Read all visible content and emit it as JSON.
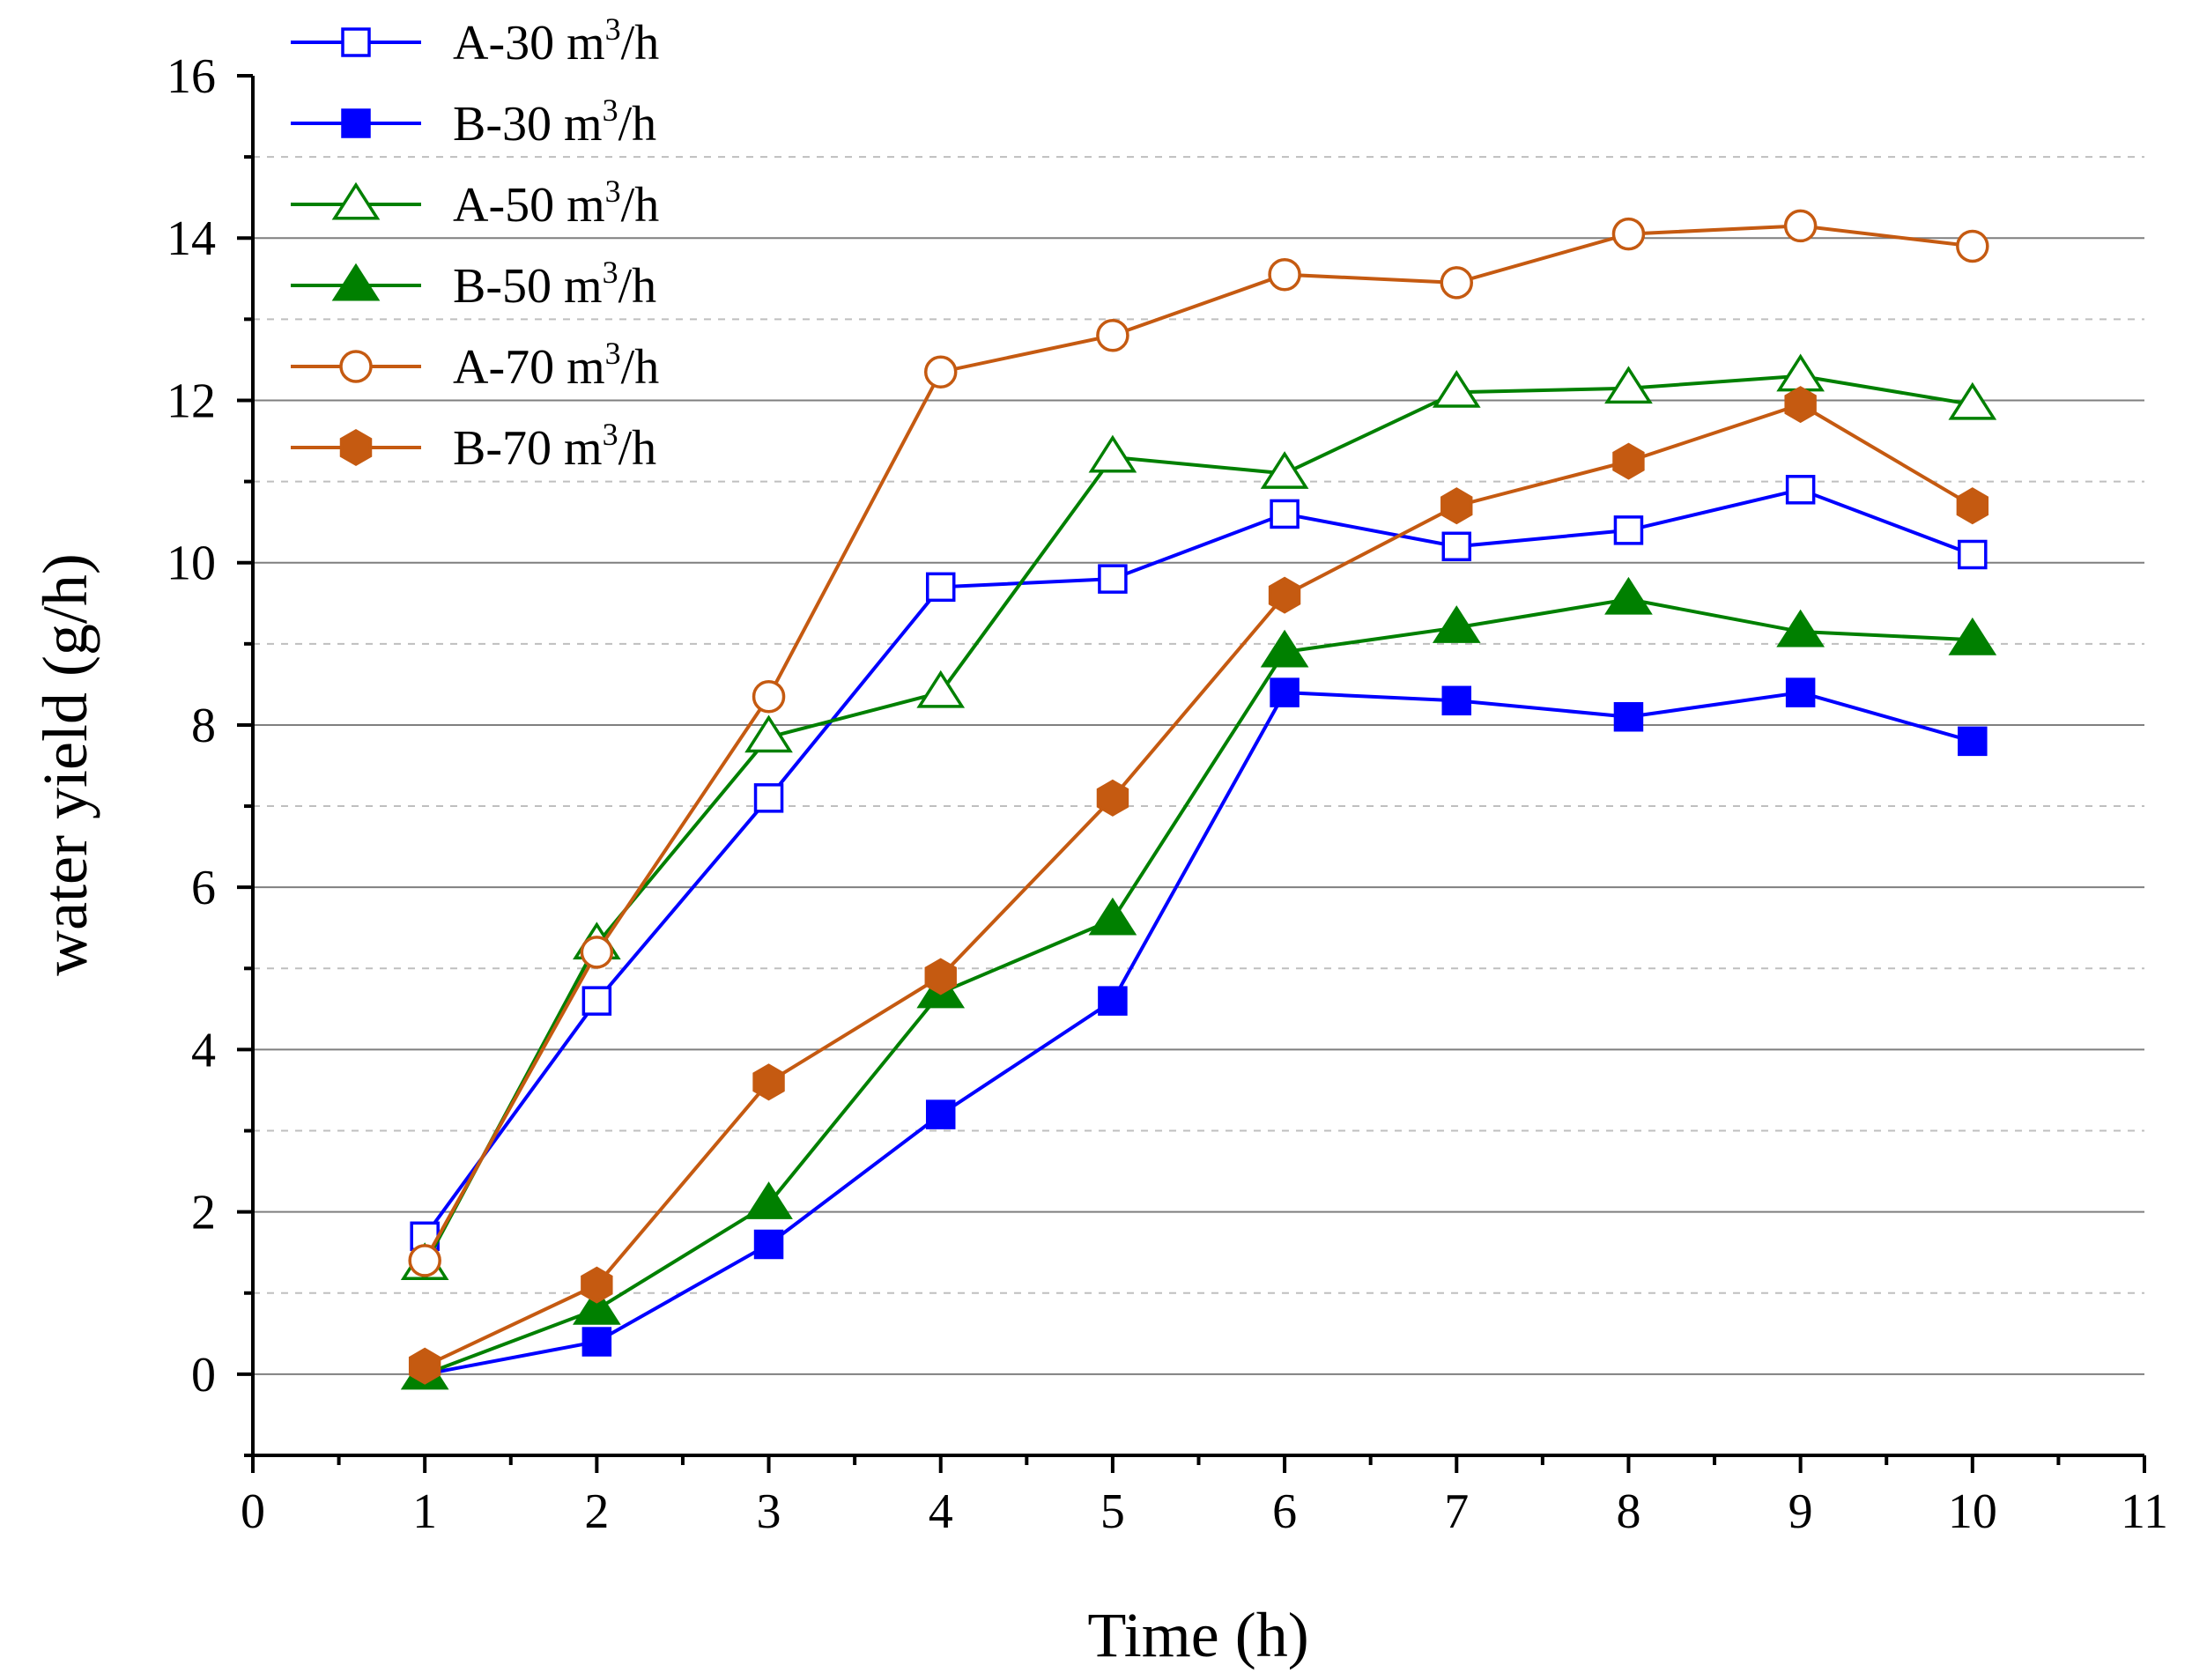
{
  "chart_data": {
    "type": "line",
    "title": "",
    "xlabel": "Time (h)",
    "ylabel": "water yield (g/h)",
    "xlim": [
      0,
      11
    ],
    "ylim": [
      -1,
      16
    ],
    "xticks": [
      0,
      1,
      2,
      3,
      4,
      5,
      6,
      7,
      8,
      9,
      10,
      11
    ],
    "yticks": [
      0,
      2,
      4,
      6,
      8,
      10,
      12,
      14,
      16
    ],
    "grid": true,
    "legend_position": "top-left",
    "x": [
      1,
      2,
      3,
      4,
      5,
      6,
      7,
      8,
      9,
      10
    ],
    "series": [
      {
        "name": "A-30 m³/h",
        "label_main": "A-30 m",
        "label_sup": "3",
        "label_tail": "/h",
        "color": "#0000ff",
        "marker": "square",
        "filled": false,
        "values": [
          1.7,
          4.6,
          7.1,
          9.7,
          9.8,
          10.6,
          10.2,
          10.4,
          10.9,
          10.1
        ]
      },
      {
        "name": "B-30 m³/h",
        "label_main": "B-30 m",
        "label_sup": "3",
        "label_tail": "/h",
        "color": "#0000ff",
        "marker": "square",
        "filled": true,
        "values": [
          0.0,
          0.4,
          1.6,
          3.2,
          4.6,
          8.4,
          8.3,
          8.1,
          8.4,
          7.8
        ]
      },
      {
        "name": "A-50 m³/h",
        "label_main": "A-50 m",
        "label_sup": "3",
        "label_tail": "/h",
        "color": "#008000",
        "marker": "triangle",
        "filled": false,
        "values": [
          1.35,
          5.3,
          7.85,
          8.4,
          11.3,
          11.1,
          12.1,
          12.15,
          12.3,
          11.95
        ]
      },
      {
        "name": "B-50 m³/h",
        "label_main": "B-50 m",
        "label_sup": "3",
        "label_tail": "/h",
        "color": "#008000",
        "marker": "triangle",
        "filled": true,
        "values": [
          0.0,
          0.8,
          2.1,
          4.7,
          5.6,
          8.9,
          9.2,
          9.55,
          9.15,
          9.05
        ]
      },
      {
        "name": "A-70 m³/h",
        "label_main": "A-70 m",
        "label_sup": "3",
        "label_tail": "/h",
        "color": "#c55a11",
        "marker": "circle",
        "filled": false,
        "values": [
          1.4,
          5.2,
          8.35,
          12.35,
          12.8,
          13.55,
          13.45,
          14.05,
          14.15,
          13.9
        ]
      },
      {
        "name": "B-70 m³/h",
        "label_main": "B-70 m",
        "label_sup": "3",
        "label_tail": "/h",
        "color": "#c55a11",
        "marker": "hexagon",
        "filled": true,
        "values": [
          0.1,
          1.1,
          3.6,
          4.9,
          7.1,
          9.6,
          10.7,
          11.25,
          11.95,
          10.7
        ]
      }
    ]
  }
}
